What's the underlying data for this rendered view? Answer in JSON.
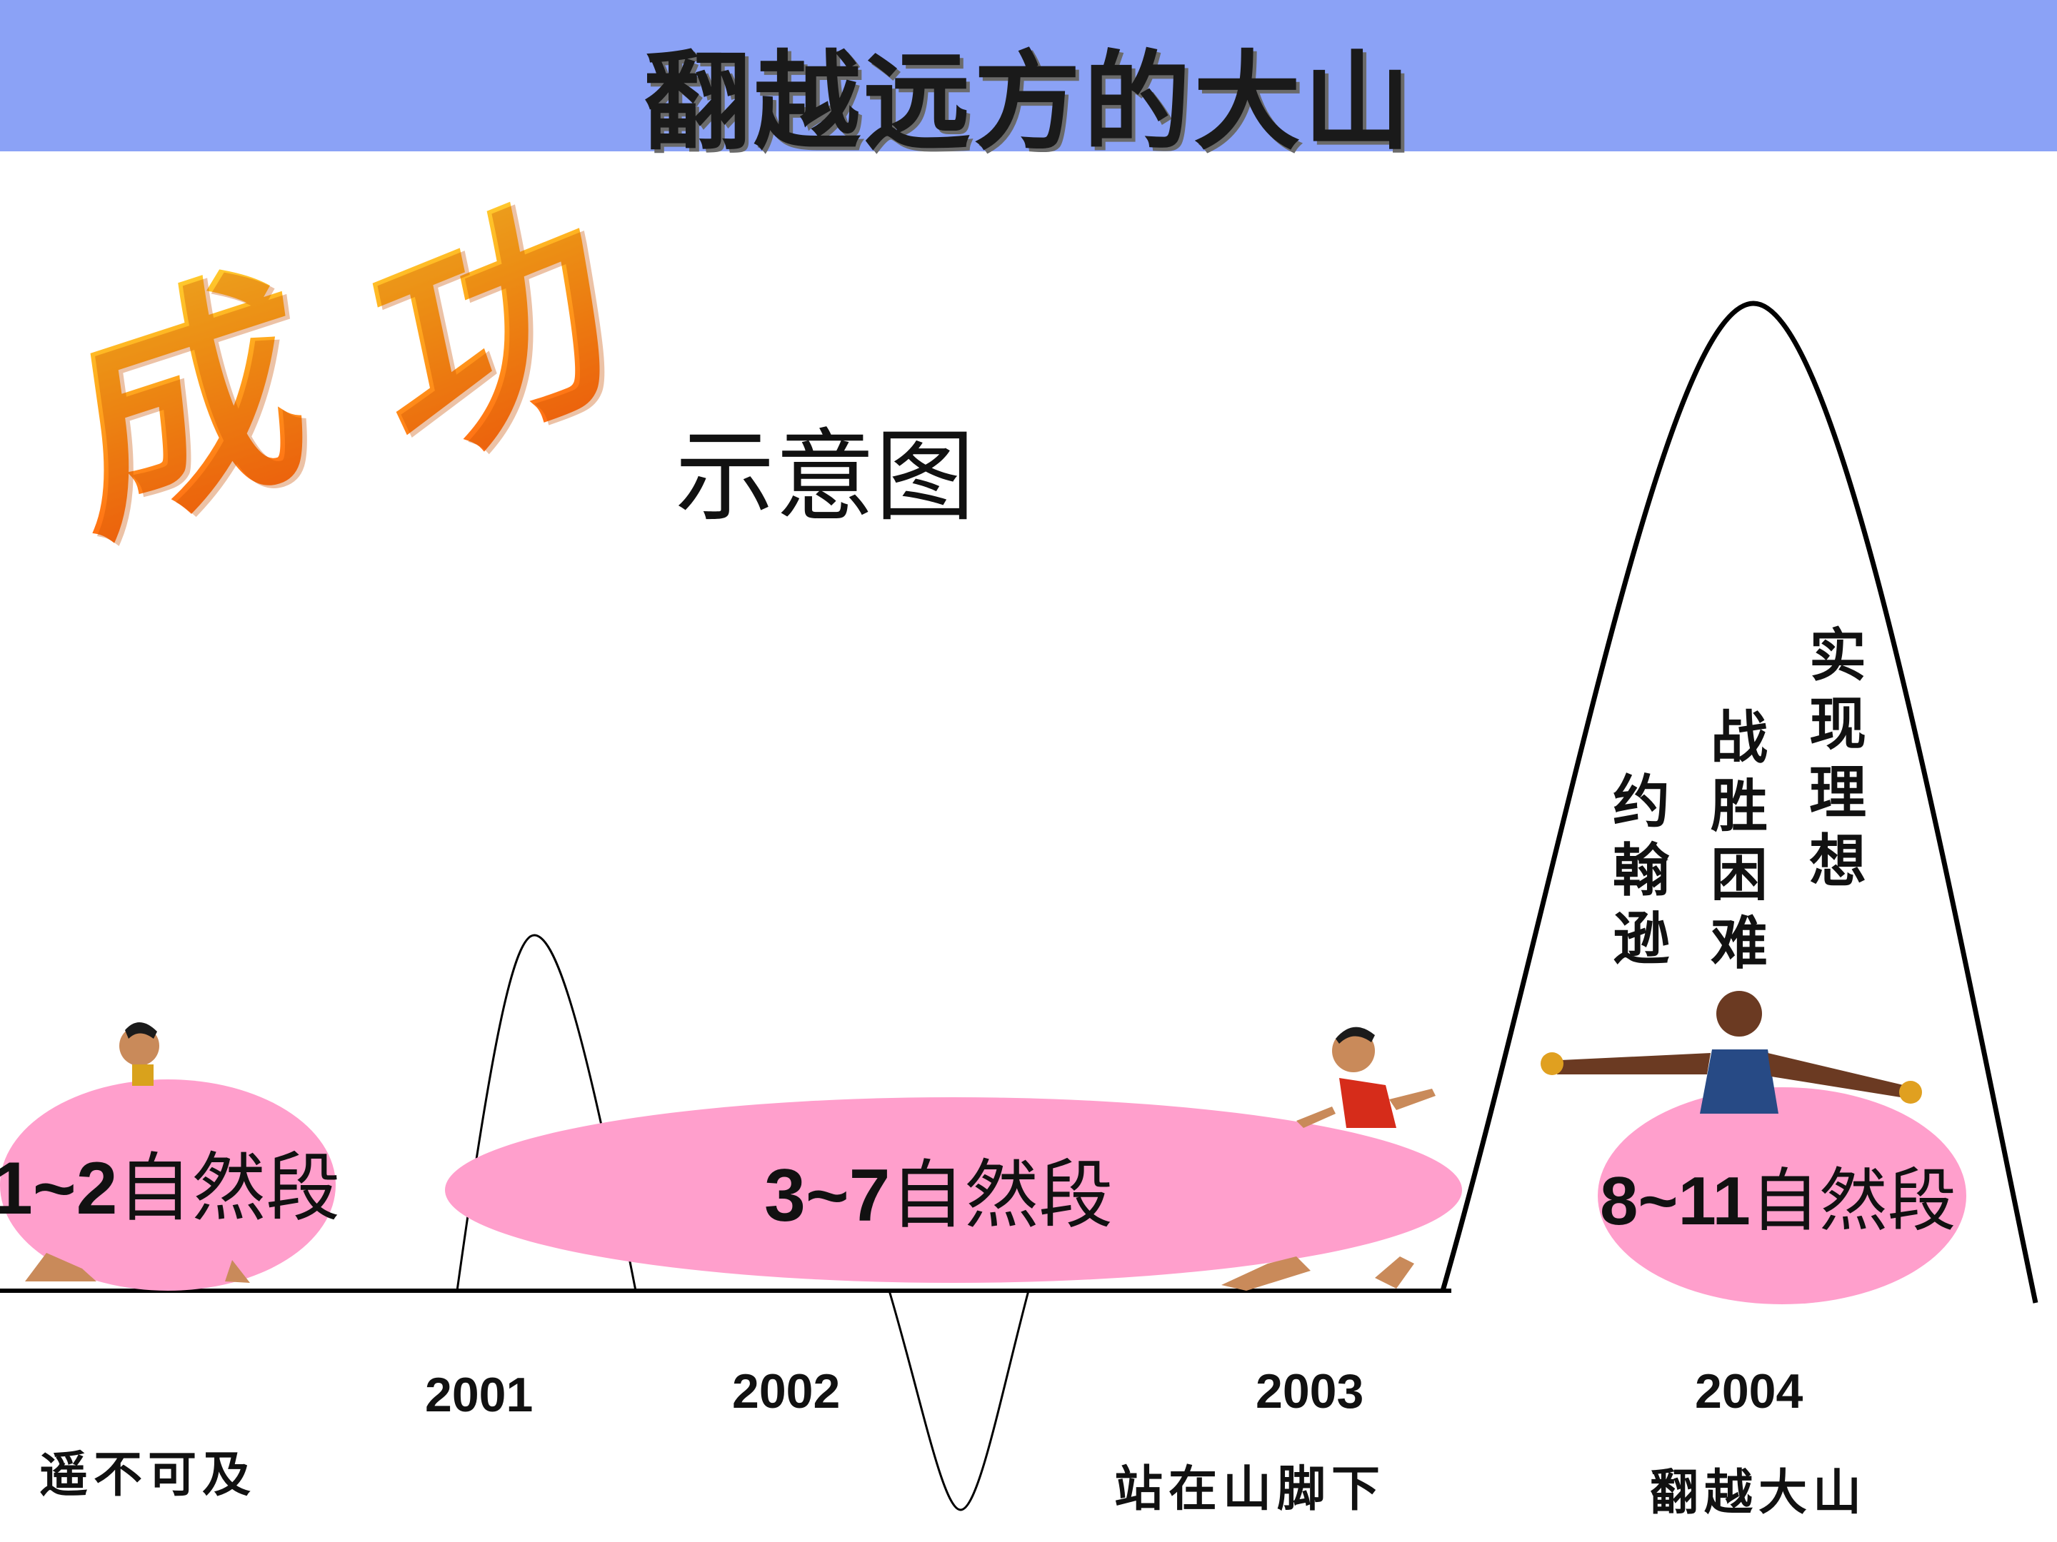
{
  "title": "翻越远方的大山",
  "big_chars": [
    "成",
    "功"
  ],
  "subtitle": "示意图",
  "segments": [
    {
      "num": "1~2",
      "text": "自然段"
    },
    {
      "num": "3~7",
      "text": "自然段"
    },
    {
      "num": "8~11",
      "text": "自然段"
    }
  ],
  "years": [
    "2001",
    "2002",
    "2003",
    "2004"
  ],
  "captions": [
    "遥不可及",
    "站在山脚下",
    "翻越大山"
  ],
  "peak_texts": [
    "约翰逊",
    "战胜困难",
    "实现理想"
  ],
  "colors": {
    "header": "#8ba2f6",
    "ellipse": "#ff9fcc",
    "accent_orange": "#ff7a1a"
  }
}
